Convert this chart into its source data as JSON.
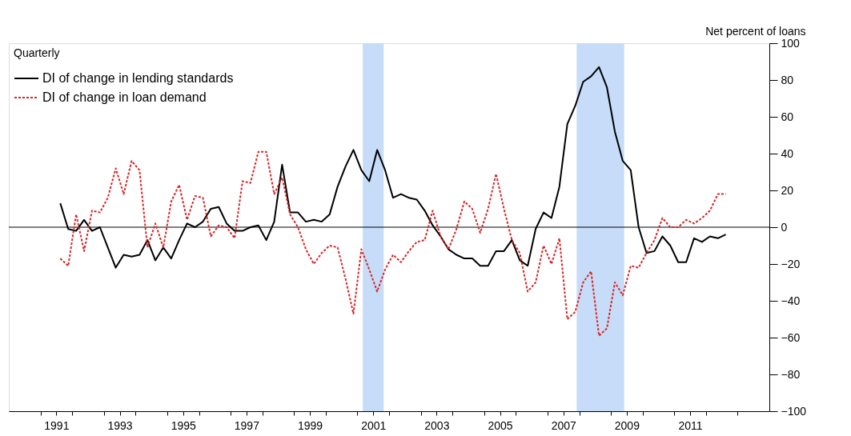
{
  "chart_data": {
    "type": "line",
    "legend_title": "Quarterly",
    "ylabel": "Net percent of loans",
    "x": [
      1991.625,
      1991.875,
      1992.125,
      1992.375,
      1992.625,
      1992.875,
      1993.125,
      1993.375,
      1993.625,
      1993.875,
      1994.125,
      1994.375,
      1994.625,
      1994.875,
      1995.125,
      1995.375,
      1995.625,
      1995.875,
      1996.125,
      1996.375,
      1996.625,
      1996.875,
      1997.125,
      1997.375,
      1997.625,
      1997.875,
      1998.125,
      1998.375,
      1998.625,
      1998.875,
      1999.125,
      1999.375,
      1999.625,
      1999.875,
      2000.125,
      2000.375,
      2000.625,
      2000.875,
      2001.125,
      2001.375,
      2001.625,
      2001.875,
      2002.125,
      2002.375,
      2002.625,
      2002.875,
      2003.125,
      2003.375,
      2003.625,
      2003.875,
      2004.125,
      2004.375,
      2004.625,
      2004.875,
      2005.125,
      2005.375,
      2005.625,
      2005.875,
      2006.125,
      2006.375,
      2006.625,
      2006.875,
      2007.125,
      2007.375,
      2007.625,
      2007.875,
      2008.125,
      2008.375,
      2008.625,
      2008.875,
      2009.125,
      2009.375,
      2009.625,
      2009.875,
      2010.125,
      2010.375,
      2010.625,
      2010.875,
      2011.125,
      2011.375,
      2011.625,
      2011.875,
      2012.125,
      2012.375,
      2012.625
    ],
    "series": [
      {
        "name": "DI of change in lending standards",
        "color": "#000000",
        "line_style": "solid",
        "values": [
          13,
          -1,
          -2,
          4,
          -2,
          0,
          -11,
          -22,
          -15,
          -16,
          -15,
          -7,
          -18,
          -11,
          -17,
          -7,
          2,
          0,
          3,
          10,
          11,
          2,
          -2,
          -2,
          0,
          1,
          -7,
          3,
          34,
          8,
          8,
          3,
          4,
          3,
          7,
          22,
          33,
          42,
          31,
          25,
          42,
          31,
          16,
          18,
          16,
          15,
          9,
          1,
          -5,
          -12,
          -15,
          -17,
          -17,
          -21,
          -21,
          -13,
          -13,
          -7,
          -18,
          -21,
          -1,
          8,
          5,
          22,
          56,
          66,
          79,
          82,
          87,
          76,
          52,
          36,
          31,
          0,
          -14,
          -13,
          -5,
          -10,
          -19,
          -19,
          -6,
          -8,
          -5,
          -6,
          -4
        ]
      },
      {
        "name": "DI of change in loan demand",
        "color": "#d62728",
        "line_style": "dotted",
        "values": [
          -17,
          -21,
          7,
          -13,
          9,
          8,
          16,
          32,
          18,
          36,
          31,
          -11,
          2,
          -11,
          14,
          23,
          4,
          17,
          16,
          -5,
          1,
          0,
          -6,
          25,
          24,
          41,
          41,
          18,
          27,
          7,
          0,
          -12,
          -20,
          -14,
          -10,
          -11,
          -28,
          -47,
          -12,
          -23,
          -35,
          -23,
          -15,
          -19,
          -13,
          -8,
          -7,
          9,
          -5,
          -12,
          -1,
          14,
          10,
          -3,
          10,
          29,
          10,
          -7,
          -14,
          -35,
          -30,
          -10,
          -20,
          -6,
          -50,
          -46,
          -30,
          -24,
          -59,
          -55,
          -30,
          -37,
          -21,
          -22,
          -14,
          -7,
          5,
          0,
          0,
          4,
          2,
          5,
          9,
          18,
          18
        ]
      }
    ],
    "xlim": [
      1990,
      2014
    ],
    "xticks": [
      {
        "value": 1991,
        "label": null
      },
      {
        "value": 1991.5,
        "label": "1991"
      },
      {
        "value": 1992,
        "label": null
      },
      {
        "value": 1993,
        "label": null
      },
      {
        "value": 1993.5,
        "label": "1993"
      },
      {
        "value": 1994,
        "label": null
      },
      {
        "value": 1995,
        "label": null
      },
      {
        "value": 1995.5,
        "label": "1995"
      },
      {
        "value": 1996,
        "label": null
      },
      {
        "value": 1997,
        "label": null
      },
      {
        "value": 1997.5,
        "label": "1997"
      },
      {
        "value": 1998,
        "label": null
      },
      {
        "value": 1999,
        "label": null
      },
      {
        "value": 1999.5,
        "label": "1999"
      },
      {
        "value": 2000,
        "label": null
      },
      {
        "value": 2001,
        "label": null
      },
      {
        "value": 2001.5,
        "label": "2001"
      },
      {
        "value": 2002,
        "label": null
      },
      {
        "value": 2003,
        "label": null
      },
      {
        "value": 2003.5,
        "label": "2003"
      },
      {
        "value": 2004,
        "label": null
      },
      {
        "value": 2005,
        "label": null
      },
      {
        "value": 2005.5,
        "label": "2005"
      },
      {
        "value": 2006,
        "label": null
      },
      {
        "value": 2007,
        "label": null
      },
      {
        "value": 2007.5,
        "label": "2007"
      },
      {
        "value": 2008,
        "label": null
      },
      {
        "value": 2009,
        "label": null
      },
      {
        "value": 2009.5,
        "label": "2009"
      },
      {
        "value": 2010,
        "label": null
      },
      {
        "value": 2011,
        "label": null
      },
      {
        "value": 2011.5,
        "label": "2011"
      },
      {
        "value": 2012,
        "label": null
      },
      {
        "value": 2013,
        "label": null
      }
    ],
    "ylim": [
      -100,
      100
    ],
    "yticks": [
      -100,
      -80,
      -60,
      -40,
      -20,
      0,
      20,
      40,
      60,
      80,
      100
    ],
    "ref_lines": [
      {
        "axis": "y",
        "value": 0,
        "color": "#000000"
      }
    ],
    "bands": [
      {
        "axis": "x",
        "from": 2001.17,
        "to": 2001.83,
        "color": "#c6dcf8"
      },
      {
        "axis": "x",
        "from": 2007.92,
        "to": 2009.42,
        "color": "#c6dcf8"
      }
    ],
    "grid": false,
    "legend": "top left",
    "marker": "none"
  }
}
